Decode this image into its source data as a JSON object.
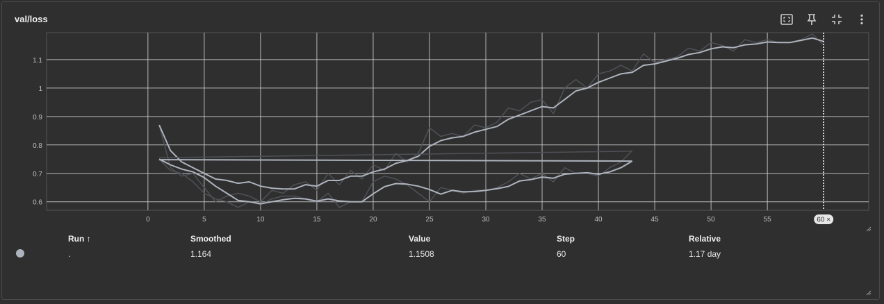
{
  "card": {
    "title": "val/loss",
    "toolbar": [
      {
        "icon": "fit-domain-icon"
      },
      {
        "icon": "pin-icon"
      },
      {
        "icon": "collapse-icon"
      },
      {
        "icon": "more-vert-icon"
      }
    ]
  },
  "chart_data": {
    "type": "line",
    "xlim": [
      -9,
      64
    ],
    "ylim": [
      0.57,
      1.195
    ],
    "xticks": [
      0,
      5,
      10,
      15,
      20,
      25,
      30,
      35,
      40,
      45,
      50,
      55
    ],
    "yticks": [
      0.6,
      0.7,
      0.8,
      0.9,
      1,
      1.1
    ],
    "ytick_labels": [
      "0.6",
      "0.7",
      "0.8",
      "0.9",
      "1",
      "1.1"
    ],
    "grid": true,
    "cursor_step": 60,
    "cursor_label": "60 ×",
    "series": [
      {
        "role": "raw",
        "color": "#4f5157",
        "x": [
          1,
          2,
          3,
          4,
          5,
          6,
          7,
          8,
          9,
          10,
          11,
          12,
          13,
          14,
          15,
          16,
          17,
          18,
          19,
          20,
          21,
          22,
          23,
          24,
          25,
          26,
          27,
          28,
          29,
          30,
          31,
          32,
          33,
          34,
          35,
          36,
          37,
          38,
          39,
          40,
          41,
          42,
          43,
          44,
          45,
          46,
          47,
          48,
          49,
          50,
          51,
          52,
          53,
          54,
          55,
          56,
          57,
          58,
          59,
          60
        ],
        "y": [
          0.87,
          0.72,
          0.69,
          0.7,
          0.65,
          0.6,
          0.62,
          0.63,
          0.62,
          0.6,
          0.64,
          0.63,
          0.66,
          0.67,
          0.64,
          0.7,
          0.66,
          0.71,
          0.68,
          0.73,
          0.71,
          0.77,
          0.74,
          0.77,
          0.86,
          0.83,
          0.84,
          0.83,
          0.87,
          0.86,
          0.88,
          0.93,
          0.92,
          0.95,
          0.96,
          0.91,
          1.0,
          1.03,
          1.0,
          1.05,
          1.06,
          1.08,
          1.06,
          1.12,
          1.09,
          1.1,
          1.11,
          1.14,
          1.13,
          1.16,
          1.15,
          1.13,
          1.17,
          1.16,
          1.17,
          1.16,
          1.16,
          1.17,
          1.19,
          1.1508
        ]
      },
      {
        "role": "smoothed",
        "color": "#aeb4be",
        "x": [
          1,
          2,
          3,
          4,
          5,
          6,
          7,
          8,
          9,
          10,
          11,
          12,
          13,
          14,
          15,
          16,
          17,
          18,
          19,
          20,
          21,
          22,
          23,
          24,
          25,
          26,
          27,
          28,
          29,
          30,
          31,
          32,
          33,
          34,
          35,
          36,
          37,
          38,
          39,
          40,
          41,
          42,
          43,
          44,
          45,
          46,
          47,
          48,
          49,
          50,
          51,
          52,
          53,
          54,
          55,
          56,
          57,
          58,
          59,
          60
        ],
        "y": [
          0.87,
          0.78,
          0.74,
          0.72,
          0.7,
          0.68,
          0.675,
          0.665,
          0.67,
          0.655,
          0.648,
          0.645,
          0.645,
          0.66,
          0.655,
          0.675,
          0.675,
          0.69,
          0.69,
          0.705,
          0.715,
          0.735,
          0.745,
          0.76,
          0.795,
          0.815,
          0.825,
          0.83,
          0.845,
          0.855,
          0.865,
          0.89,
          0.905,
          0.92,
          0.935,
          0.93,
          0.96,
          0.99,
          1.0,
          1.02,
          1.035,
          1.05,
          1.055,
          1.08,
          1.085,
          1.095,
          1.105,
          1.118,
          1.125,
          1.138,
          1.145,
          1.142,
          1.152,
          1.155,
          1.162,
          1.16,
          1.16,
          1.168,
          1.176,
          1.164
        ]
      },
      {
        "role": "raw",
        "color": "#4f5157",
        "x": [
          1,
          2,
          3,
          4,
          5,
          6,
          7,
          8,
          9,
          10,
          11,
          12,
          13,
          14,
          15,
          16,
          17,
          18,
          19,
          20,
          21,
          22,
          23,
          24,
          25,
          26,
          27,
          28,
          29,
          30,
          31,
          32,
          33,
          34,
          35,
          36,
          37,
          38,
          39,
          40,
          41,
          42,
          43
        ],
        "y": [
          0.75,
          0.71,
          0.7,
          0.67,
          0.63,
          0.61,
          0.6,
          0.58,
          0.6,
          0.59,
          0.61,
          0.62,
          0.62,
          0.61,
          0.6,
          0.63,
          0.58,
          0.6,
          0.6,
          0.67,
          0.69,
          0.68,
          0.66,
          0.63,
          0.6,
          0.65,
          0.64,
          0.63,
          0.64,
          0.64,
          0.65,
          0.67,
          0.7,
          0.68,
          0.7,
          0.67,
          0.72,
          0.7,
          0.7,
          0.69,
          0.72,
          0.74,
          0.78
        ]
      },
      {
        "role": "smoothed",
        "color": "#aeb4be",
        "x": [
          1,
          2,
          3,
          4,
          5,
          6,
          7,
          8,
          9,
          10,
          11,
          12,
          13,
          14,
          15,
          16,
          17,
          18,
          19,
          20,
          21,
          22,
          23,
          24,
          25,
          26,
          27,
          28,
          29,
          30,
          31,
          32,
          33,
          34,
          35,
          36,
          37,
          38,
          39,
          40,
          41,
          42,
          43
        ],
        "y": [
          0.75,
          0.73,
          0.715,
          0.705,
          0.685,
          0.655,
          0.63,
          0.605,
          0.6,
          0.593,
          0.6,
          0.607,
          0.612,
          0.61,
          0.602,
          0.61,
          0.603,
          0.6,
          0.6,
          0.628,
          0.653,
          0.664,
          0.662,
          0.655,
          0.643,
          0.627,
          0.64,
          0.635,
          0.636,
          0.64,
          0.646,
          0.654,
          0.673,
          0.678,
          0.687,
          0.683,
          0.697,
          0.7,
          0.702,
          0.697,
          0.705,
          0.72,
          0.743
        ]
      },
      {
        "role": "raw",
        "color": "#4f5157",
        "x": [
          1,
          43
        ],
        "y": [
          0.755,
          0.778
        ]
      },
      {
        "role": "smoothed",
        "color": "#aeb4be",
        "x": [
          1,
          43
        ],
        "y": [
          0.748,
          0.743
        ]
      }
    ]
  },
  "table": {
    "headers": {
      "run": "Run ↑",
      "smoothed": "Smoothed",
      "value": "Value",
      "step": "Step",
      "relative": "Relative"
    },
    "row": {
      "run": ".",
      "smoothed": "1.164",
      "value": "1.1508",
      "step": "60",
      "relative": "1.17 day",
      "color": "#aeb4be"
    }
  }
}
